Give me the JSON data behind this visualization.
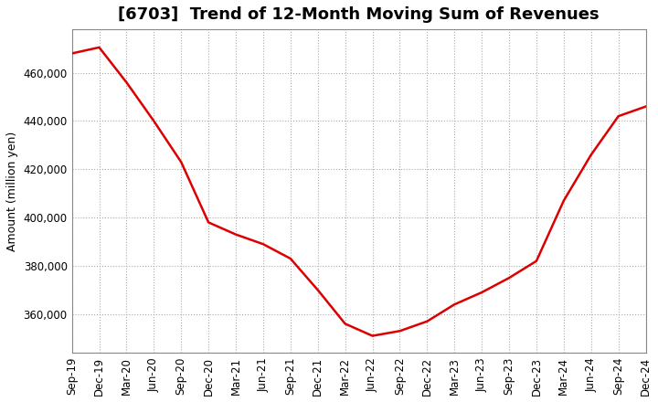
{
  "title": "[6703]  Trend of 12-Month Moving Sum of Revenues",
  "ylabel": "Amount (million yen)",
  "background_color": "#ffffff",
  "grid_color": "#aaaaaa",
  "line_color": "#dd0000",
  "x_labels": [
    "Sep-19",
    "Dec-19",
    "Mar-20",
    "Jun-20",
    "Sep-20",
    "Dec-20",
    "Mar-21",
    "Jun-21",
    "Sep-21",
    "Dec-21",
    "Mar-22",
    "Jun-22",
    "Sep-22",
    "Dec-22",
    "Mar-23",
    "Jun-23",
    "Sep-23",
    "Dec-23",
    "Mar-24",
    "Jun-24",
    "Sep-24",
    "Dec-24"
  ],
  "values": [
    468000,
    470500,
    456000,
    440000,
    423000,
    398000,
    393000,
    389000,
    383000,
    370000,
    356000,
    351000,
    353000,
    357000,
    364000,
    369000,
    375000,
    382000,
    407000,
    426000,
    442000,
    446000
  ],
  "ylim_min": 344000,
  "ylim_max": 478000,
  "yticks": [
    360000,
    380000,
    400000,
    420000,
    440000,
    460000
  ],
  "title_fontsize": 13,
  "axis_fontsize": 9,
  "tick_fontsize": 8.5,
  "line_width": 1.8
}
